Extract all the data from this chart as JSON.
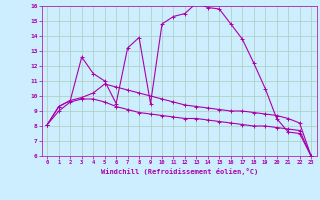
{
  "xlabel": "Windchill (Refroidissement éolien,°C)",
  "background_color": "#cceeff",
  "grid_color": "#aaccbb",
  "line_color": "#aa00aa",
  "xlim": [
    -0.5,
    23.5
  ],
  "ylim": [
    6,
    16
  ],
  "yticks": [
    6,
    7,
    8,
    9,
    10,
    11,
    12,
    13,
    14,
    15,
    16
  ],
  "xticks": [
    0,
    1,
    2,
    3,
    4,
    5,
    6,
    7,
    8,
    9,
    10,
    11,
    12,
    13,
    14,
    15,
    16,
    17,
    18,
    19,
    20,
    21,
    22,
    23
  ],
  "series": [
    [
      8.1,
      9.3,
      9.7,
      12.6,
      11.5,
      11.0,
      9.5,
      13.2,
      13.9,
      9.5,
      14.8,
      15.3,
      15.5,
      16.2,
      15.9,
      15.8,
      14.8,
      13.8,
      12.2,
      10.5,
      8.5,
      7.6,
      7.5,
      6.0
    ],
    [
      8.1,
      9.3,
      9.7,
      9.9,
      10.2,
      10.8,
      10.6,
      10.4,
      10.2,
      10.0,
      9.8,
      9.6,
      9.4,
      9.3,
      9.2,
      9.1,
      9.0,
      9.0,
      8.9,
      8.8,
      8.7,
      8.5,
      8.2,
      6.0
    ],
    [
      8.1,
      9.0,
      9.6,
      9.8,
      9.8,
      9.6,
      9.3,
      9.1,
      8.9,
      8.8,
      8.7,
      8.6,
      8.5,
      8.5,
      8.4,
      8.3,
      8.2,
      8.1,
      8.0,
      8.0,
      7.9,
      7.8,
      7.7,
      6.0
    ]
  ]
}
